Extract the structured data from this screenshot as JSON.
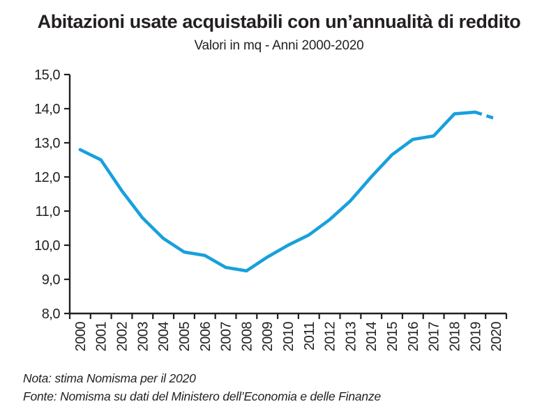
{
  "header": {
    "title": "Abitazioni usate acquistabili con un’annualità di reddito",
    "subtitle": "Valori in mq - Anni 2000-2020"
  },
  "footer": {
    "note": "Nota: stima Nomisma per il 2020",
    "source": "Fonte: Nomisma su dati del Ministero dell’Economia e delle Finanze"
  },
  "colors": {
    "line": "#18a0dc",
    "axis": "#231f20",
    "text": "#231f20"
  },
  "chart_data": {
    "type": "line",
    "title": "Abitazioni usate acquistabili con un’annualità di reddito",
    "subtitle": "Valori in mq - Anni 2000-2020",
    "categories": [
      "2000",
      "2001",
      "2002",
      "2003",
      "2004",
      "2005",
      "2006",
      "2007",
      "2008",
      "2009",
      "2010",
      "2011",
      "2012",
      "2013",
      "2014",
      "2015",
      "2016",
      "2017",
      "2018",
      "2019",
      "2020"
    ],
    "values": [
      12.8,
      12.5,
      11.6,
      10.8,
      10.2,
      9.8,
      9.7,
      9.35,
      9.25,
      9.65,
      10.0,
      10.3,
      10.75,
      11.3,
      12.0,
      12.65,
      13.1,
      13.2,
      13.85,
      13.9,
      13.7
    ],
    "dashed_from_index": 19,
    "dashed_meaning": "stima Nomisma per il 2020",
    "xlabel": "",
    "ylabel": "",
    "ylim": [
      8.0,
      15.0
    ],
    "ytick_step": 1.0,
    "ytick_labels": [
      "8,0",
      "9,0",
      "10,0",
      "11,0",
      "12,0",
      "13,0",
      "14,0",
      "15,0"
    ],
    "decimal_separator": ",",
    "grid": false,
    "legend_position": "none",
    "line_color": "#18a0dc"
  }
}
